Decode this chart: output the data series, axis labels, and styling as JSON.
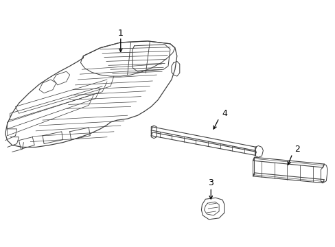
{
  "background_color": "#ffffff",
  "line_color": "#404040",
  "line_width": 0.9,
  "label_color": "#000000",
  "label_fontsize": 9,
  "figsize": [
    4.89,
    3.6
  ],
  "dpi": 100
}
